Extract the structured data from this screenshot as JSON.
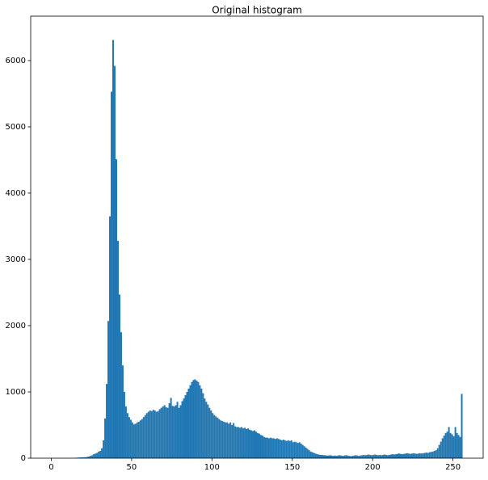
{
  "chart_data": {
    "type": "histogram",
    "title": "Original histogram",
    "bins": [
      0,
      1,
      2,
      3,
      4,
      5,
      6,
      7,
      8,
      9,
      10,
      11,
      12,
      13,
      14,
      15,
      16,
      17,
      18,
      19,
      20,
      21,
      22,
      23,
      24,
      25,
      26,
      27,
      28,
      29,
      30,
      31,
      32,
      33,
      34,
      35,
      36,
      37,
      38,
      39,
      40,
      41,
      42,
      43,
      44,
      45,
      46,
      47,
      48,
      49,
      50,
      51,
      52,
      53,
      54,
      55,
      56,
      57,
      58,
      59,
      60,
      61,
      62,
      63,
      64,
      65,
      66,
      67,
      68,
      69,
      70,
      71,
      72,
      73,
      74,
      75,
      76,
      77,
      78,
      79,
      80,
      81,
      82,
      83,
      84,
      85,
      86,
      87,
      88,
      89,
      90,
      91,
      92,
      93,
      94,
      95,
      96,
      97,
      98,
      99,
      100,
      101,
      102,
      103,
      104,
      105,
      106,
      107,
      108,
      109,
      110,
      111,
      112,
      113,
      114,
      115,
      116,
      117,
      118,
      119,
      120,
      121,
      122,
      123,
      124,
      125,
      126,
      127,
      128,
      129,
      130,
      131,
      132,
      133,
      134,
      135,
      136,
      137,
      138,
      139,
      140,
      141,
      142,
      143,
      144,
      145,
      146,
      147,
      148,
      149,
      150,
      151,
      152,
      153,
      154,
      155,
      156,
      157,
      158,
      159,
      160,
      161,
      162,
      163,
      164,
      165,
      166,
      167,
      168,
      169,
      170,
      171,
      172,
      173,
      174,
      175,
      176,
      177,
      178,
      179,
      180,
      181,
      182,
      183,
      184,
      185,
      186,
      187,
      188,
      189,
      190,
      191,
      192,
      193,
      194,
      195,
      196,
      197,
      198,
      199,
      200,
      201,
      202,
      203,
      204,
      205,
      206,
      207,
      208,
      209,
      210,
      211,
      212,
      213,
      214,
      215,
      216,
      217,
      218,
      219,
      220,
      221,
      222,
      223,
      224,
      225,
      226,
      227,
      228,
      229,
      230,
      231,
      232,
      233,
      234,
      235,
      236,
      237,
      238,
      239,
      240,
      241,
      242,
      243,
      244,
      245,
      246,
      247,
      248,
      249,
      250,
      251,
      252,
      253,
      254,
      255,
      256
    ],
    "values": [
      0,
      0,
      0,
      0,
      0,
      0,
      0,
      0,
      0,
      0,
      0,
      0,
      0,
      0,
      2,
      5,
      8,
      10,
      12,
      12,
      15,
      15,
      20,
      25,
      35,
      45,
      60,
      70,
      80,
      100,
      110,
      150,
      270,
      600,
      1120,
      2070,
      3650,
      5530,
      6310,
      5920,
      4510,
      3280,
      2470,
      1900,
      1400,
      1000,
      780,
      680,
      620,
      580,
      540,
      510,
      520,
      540,
      550,
      570,
      590,
      620,
      650,
      680,
      700,
      720,
      710,
      730,
      720,
      700,
      710,
      740,
      760,
      780,
      800,
      770,
      760,
      830,
      910,
      790,
      780,
      800,
      850,
      760,
      800,
      860,
      900,
      950,
      1000,
      1050,
      1100,
      1150,
      1180,
      1190,
      1170,
      1150,
      1100,
      1050,
      980,
      900,
      850,
      810,
      760,
      720,
      680,
      650,
      630,
      610,
      590,
      570,
      560,
      550,
      540,
      540,
      520,
      540,
      500,
      530,
      480,
      470,
      470,
      460,
      470,
      450,
      460,
      440,
      450,
      430,
      420,
      410,
      420,
      400,
      380,
      370,
      350,
      340,
      320,
      310,
      310,
      300,
      310,
      300,
      300,
      290,
      300,
      290,
      280,
      270,
      280,
      270,
      260,
      270,
      260,
      270,
      240,
      250,
      240,
      230,
      240,
      220,
      200,
      180,
      160,
      140,
      120,
      100,
      90,
      80,
      70,
      60,
      55,
      50,
      50,
      45,
      45,
      40,
      40,
      45,
      40,
      35,
      40,
      35,
      40,
      45,
      40,
      35,
      40,
      45,
      40,
      35,
      30,
      35,
      40,
      45,
      40,
      35,
      40,
      45,
      50,
      45,
      50,
      55,
      50,
      45,
      50,
      55,
      50,
      45,
      50,
      45,
      50,
      55,
      50,
      45,
      50,
      55,
      60,
      55,
      60,
      65,
      70,
      65,
      60,
      65,
      70,
      75,
      70,
      65,
      70,
      75,
      70,
      65,
      70,
      75,
      70,
      75,
      80,
      85,
      80,
      90,
      95,
      100,
      110,
      120,
      150,
      200,
      250,
      300,
      340,
      380,
      400,
      470,
      380,
      360,
      330,
      470,
      380,
      350,
      320,
      970
    ],
    "color": "#1f77b4",
    "xlim": [
      -12.8,
      268.8
    ],
    "xticks": [
      0,
      50,
      100,
      150,
      200,
      250
    ],
    "ylim": [
      0,
      6670
    ],
    "yticks": [
      0,
      1000,
      2000,
      3000,
      4000,
      5000,
      6000
    ]
  }
}
